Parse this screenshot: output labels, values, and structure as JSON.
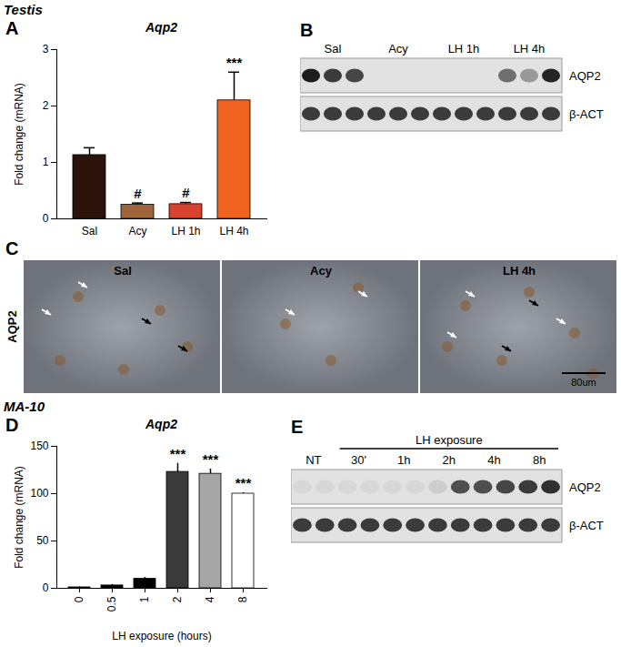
{
  "sections": [
    "Testis",
    "MA-10"
  ],
  "chart_data": [
    {
      "panel": "A",
      "type": "bar",
      "title": "Aqp2",
      "categories": [
        "Sal",
        "Acy",
        "LH 1h",
        "LH 4h"
      ],
      "values": [
        1.13,
        0.25,
        0.26,
        2.1
      ],
      "errors": [
        0.13,
        0.03,
        0.03,
        0.5
      ],
      "annotations": [
        null,
        "#",
        "#",
        "***"
      ],
      "colors": [
        "#2b130c",
        "#a0643c",
        "#d8412b",
        "#f0621f"
      ],
      "y_label": "Fold change (mRNA)",
      "ylim": [
        0,
        3
      ],
      "yticks": [
        0,
        1,
        2,
        3
      ]
    },
    {
      "panel": "D",
      "type": "bar",
      "title": "Aqp2",
      "categories": [
        "0",
        "0.5",
        "1",
        "2",
        "4",
        "8"
      ],
      "values": [
        1,
        3,
        10,
        123,
        121,
        100
      ],
      "errors": [
        0.5,
        1,
        1.5,
        9,
        5,
        1
      ],
      "annotations": [
        null,
        null,
        null,
        "***",
        "***",
        "***"
      ],
      "colors": [
        "#000000",
        "#000000",
        "#000000",
        "#3a3a3a",
        "#a6a6a6",
        "#ffffff"
      ],
      "x_label": "LH exposure (hours)",
      "y_label": "Fold change (mRNA)",
      "ylim": [
        0,
        150
      ],
      "yticks": [
        0,
        50,
        100,
        150
      ]
    }
  ],
  "blots": [
    {
      "panel": "B",
      "groups": [
        {
          "label": "Sal",
          "lanes": 3
        },
        {
          "label": "Acy",
          "lanes": 3
        },
        {
          "label": "LH 1h",
          "lanes": 3
        },
        {
          "label": "LH 4h",
          "lanes": 3
        }
      ],
      "rows": [
        {
          "label": "AQP2",
          "intensity": [
            0.95,
            0.8,
            0.75,
            0,
            0,
            0,
            0,
            0,
            0,
            0.55,
            0.35,
            0.9
          ]
        },
        {
          "label": "β-ACT",
          "intensity": [
            0.8,
            0.8,
            0.8,
            0.8,
            0.8,
            0.8,
            0.8,
            0.8,
            0.8,
            0.8,
            0.8,
            0.8
          ]
        }
      ]
    },
    {
      "panel": "E",
      "bracket": {
        "label": "LH exposure",
        "groups": [
          "30'",
          "1h",
          "2h",
          "4h",
          "8h"
        ]
      },
      "groups": [
        {
          "label": "NT",
          "lanes": 2
        },
        {
          "label": "30'",
          "lanes": 2
        },
        {
          "label": "1h",
          "lanes": 2
        },
        {
          "label": "2h",
          "lanes": 2
        },
        {
          "label": "4h",
          "lanes": 2
        },
        {
          "label": "8h",
          "lanes": 2
        }
      ],
      "rows": [
        {
          "label": "AQP2",
          "intensity": [
            0.05,
            0.05,
            0.05,
            0.05,
            0.05,
            0.05,
            0.1,
            0.7,
            0.7,
            0.75,
            0.8,
            0.85
          ]
        },
        {
          "label": "β-ACT",
          "intensity": [
            0.8,
            0.8,
            0.8,
            0.8,
            0.8,
            0.8,
            0.8,
            0.8,
            0.8,
            0.8,
            0.8,
            0.8
          ]
        }
      ]
    }
  ],
  "micrograph": {
    "panel": "C",
    "row_label": "AQP2",
    "columns": [
      "Sal",
      "Acy",
      "LH 4h"
    ],
    "scale_bar": "80um"
  }
}
